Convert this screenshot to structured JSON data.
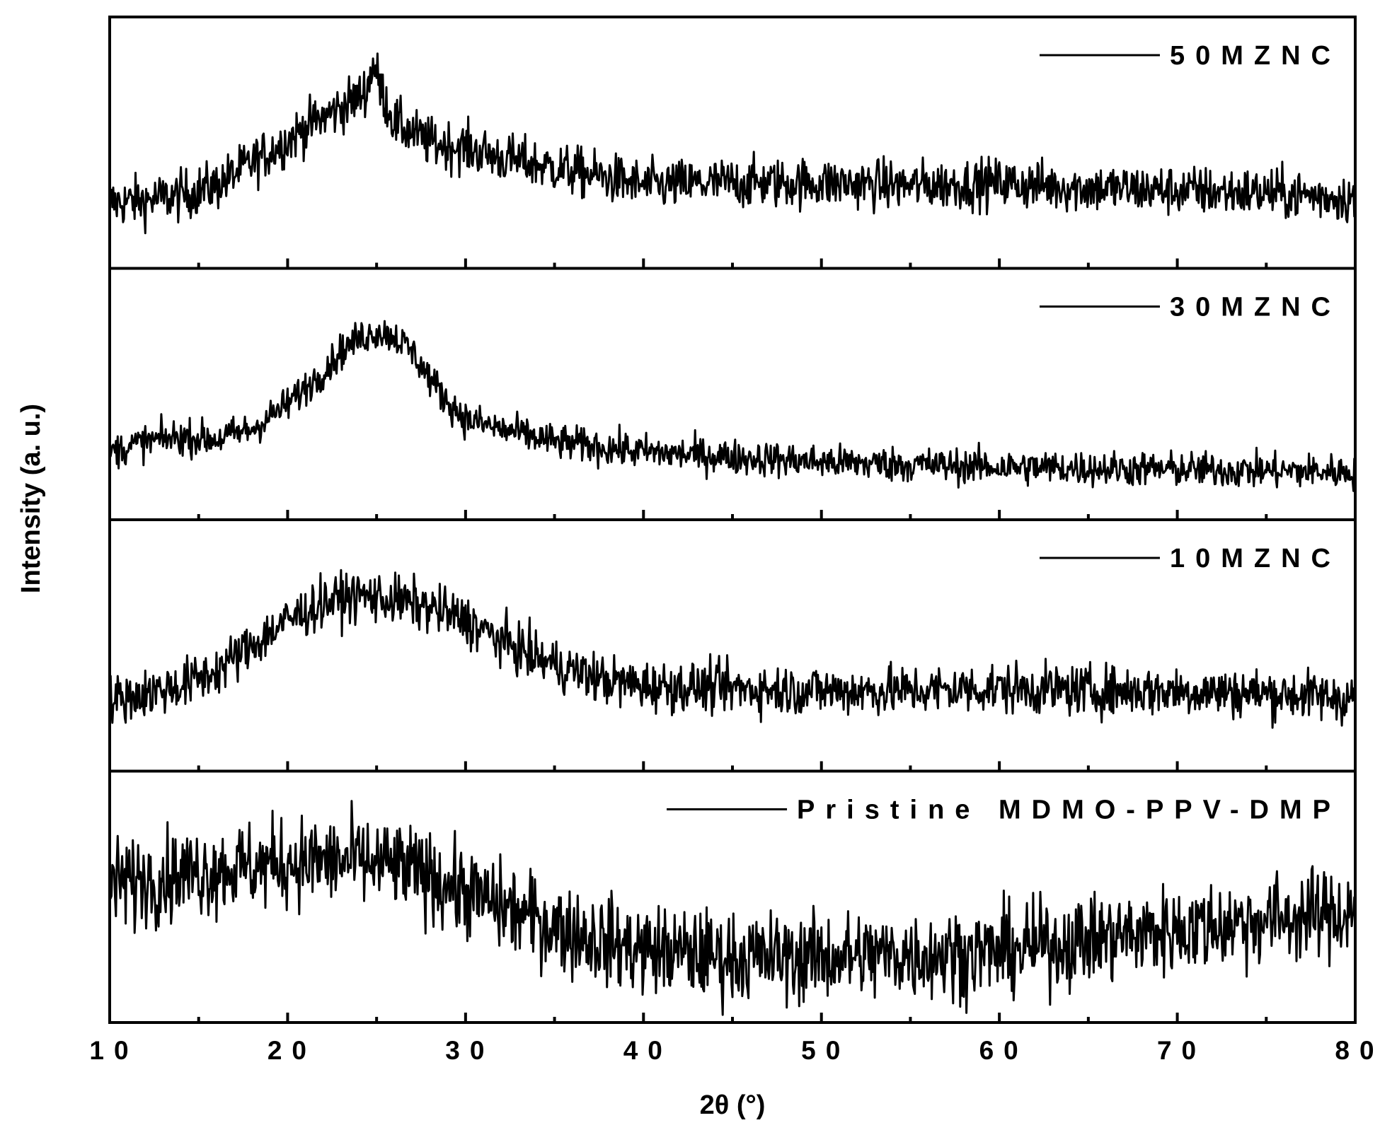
{
  "chart_data": {
    "type": "line",
    "layout": "stacked-panels",
    "xlabel": "2θ (°)",
    "ylabel": "Intensity (a. u.)",
    "xlim": [
      10,
      80
    ],
    "x_major_ticks": [
      10,
      20,
      30,
      40,
      50,
      60,
      70,
      80
    ],
    "x_minor_ticks": [
      15,
      25,
      35,
      45,
      55,
      65,
      75
    ],
    "x_tick_labels": [
      "10",
      "20",
      "30",
      "40",
      "50",
      "60",
      "70",
      "80"
    ],
    "y_ticks": "none",
    "grid": false,
    "legend_placement": "top-right of each panel",
    "line_color": "#000000",
    "panels": [
      {
        "name": "50MZNC",
        "legend_label": "50MZNC",
        "ylim": [
          0,
          100
        ],
        "noise": 5,
        "x": [
          10,
          12,
          14,
          16,
          18,
          20,
          21,
          22,
          23,
          24,
          24.5,
          24.8,
          25.2,
          26,
          27,
          28,
          30,
          32,
          35,
          38,
          40,
          45,
          50,
          55,
          60,
          65,
          70,
          75,
          80
        ],
        "y": [
          26,
          27,
          29,
          33,
          42,
          51,
          56,
          60,
          64,
          68,
          72,
          82,
          72,
          58,
          54,
          50,
          48,
          44,
          40,
          36,
          33,
          34,
          34,
          33,
          34,
          32,
          31,
          30,
          28
        ]
      },
      {
        "name": "30MZNC",
        "legend_label": "30MZNC",
        "ylim": [
          0,
          100
        ],
        "noise": 3.5,
        "x": [
          10,
          12,
          14,
          16,
          18,
          20,
          22,
          23,
          24,
          25,
          26,
          27,
          28,
          29,
          30,
          32,
          35,
          40,
          45,
          50,
          55,
          60,
          65,
          70,
          75,
          80
        ],
        "y": [
          27,
          31,
          33,
          32,
          36,
          46,
          59,
          67,
          72,
          75,
          73,
          67,
          56,
          47,
          40,
          36,
          31,
          27,
          25,
          23,
          22,
          21,
          20.5,
          20,
          19.5,
          19
        ]
      },
      {
        "name": "10MZNC",
        "legend_label": "10MZNC",
        "ylim": [
          0,
          100
        ],
        "noise": 5,
        "x": [
          10,
          12,
          14,
          16,
          18,
          20,
          22,
          24,
          26,
          28,
          30,
          32,
          34,
          36,
          38,
          40,
          45,
          50,
          55,
          60,
          65,
          70,
          75,
          80
        ],
        "y": [
          28,
          31,
          34,
          40,
          50,
          60,
          67,
          70,
          68,
          65,
          60,
          52,
          45,
          40,
          36,
          34,
          33,
          32,
          32,
          33,
          32,
          32,
          31,
          29
        ]
      },
      {
        "name": "Pristine MDMO-PPV-DMP",
        "legend_label": "Pristine MDMO-PPV-DMP",
        "ylim": [
          0,
          100
        ],
        "noise": 9,
        "x": [
          10,
          12,
          14,
          16,
          18,
          20,
          22,
          24,
          26,
          28,
          30,
          32,
          34,
          36,
          38,
          40,
          45,
          50,
          55,
          60,
          65,
          70,
          75,
          80
        ],
        "y": [
          55,
          57,
          59,
          61,
          62,
          64,
          64,
          64,
          62,
          58,
          52,
          46,
          41,
          36,
          32,
          29,
          26,
          26,
          27,
          28,
          33,
          37,
          41,
          44
        ]
      }
    ]
  }
}
